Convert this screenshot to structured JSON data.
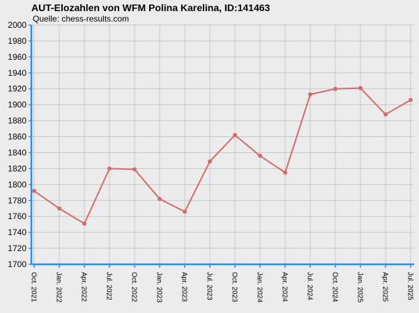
{
  "chart_data": {
    "type": "line",
    "title": "AUT-Elozahlen von WFM Polina Karelina, ID:141463",
    "subtitle": "Quelle: chess-results.com",
    "xlabel": "",
    "ylabel": "",
    "ylim": [
      1700,
      2000
    ],
    "y_ticks": [
      1700,
      1720,
      1740,
      1760,
      1780,
      1800,
      1820,
      1840,
      1860,
      1880,
      1900,
      1920,
      1940,
      1960,
      1980,
      2000
    ],
    "grid": true,
    "categories": [
      "Oct. 2021",
      "Jan. 2022",
      "Apr. 2022",
      "Jul. 2022",
      "Oct. 2022",
      "Jan. 2023",
      "Apr. 2023",
      "Jul. 2023",
      "Oct. 2023",
      "Jan. 2024",
      "Apr. 2024",
      "Jul. 2024",
      "Oct. 2024",
      "Jan. 2025",
      "Apr. 2025",
      "Jul. 2025"
    ],
    "series": [
      {
        "values": [
          1792,
          1770,
          1751,
          1820,
          1819,
          1782,
          1766,
          1829,
          1862,
          1836,
          1815,
          1913,
          1920,
          1921,
          1888,
          1906
        ],
        "color": "#d46a6a"
      }
    ],
    "colors": {
      "background": "#ececec",
      "grid": "#c8c8c8",
      "axis": "#1e90ff",
      "line": "#d46a6a"
    }
  }
}
